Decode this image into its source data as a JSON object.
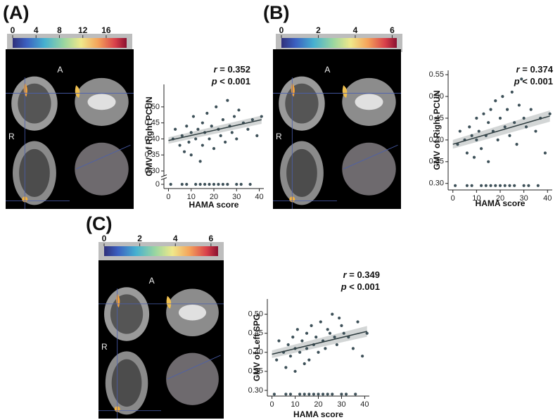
{
  "chart_data": [
    {
      "type": "scatter",
      "panel_label": "(A)",
      "stat_r": "r = 0.352",
      "stat_p": "p < 0.001",
      "brain_labels": {
        "anterior": "A",
        "right": "R"
      },
      "colorbar_ticks": [
        0,
        4,
        8,
        12,
        16
      ],
      "colorbar_lim": [
        0,
        19.5
      ],
      "xlabel": "HAMA score",
      "ylabel": "GMV of Right PCUN",
      "axis_break": true,
      "xlim": [
        -2,
        42
      ],
      "xticks": [
        0,
        10,
        20,
        30,
        40
      ],
      "ylim": [
        0,
        0.57
      ],
      "yticks": [
        {
          "value": 0,
          "label": "0"
        },
        {
          "value": 0.3,
          "label": "0.30"
        },
        {
          "value": 0.35,
          "label": "0.35"
        },
        {
          "value": 0.4,
          "label": "0.40"
        },
        {
          "value": 0.45,
          "label": "0.45"
        },
        {
          "value": 0.5,
          "label": "0.50"
        }
      ],
      "color": "#3d5058",
      "x": [
        2,
        3,
        5,
        6,
        7,
        8,
        9,
        10,
        10,
        11,
        12,
        13,
        14,
        15,
        15,
        16,
        17,
        18,
        19,
        20,
        21,
        22,
        23,
        24,
        25,
        26,
        27,
        28,
        29,
        30,
        31,
        33,
        35,
        37,
        39,
        41,
        1,
        6,
        12,
        18,
        24,
        30,
        36,
        8,
        14,
        20,
        26,
        32,
        16,
        22
      ],
      "y": [
        0.4,
        0.43,
        0.38,
        0.41,
        0.36,
        0.44,
        0.39,
        0.42,
        0.35,
        0.47,
        0.4,
        0.43,
        0.33,
        0.45,
        0.38,
        0.42,
        0.48,
        0.4,
        0.44,
        0.37,
        0.5,
        0.43,
        0.41,
        0.46,
        0.39,
        0.52,
        0.44,
        0.42,
        0.47,
        0.4,
        0.49,
        0.45,
        0.43,
        0.46,
        0.41,
        0.47,
        0,
        0,
        0,
        0,
        0,
        0,
        0,
        0,
        0,
        0,
        0,
        0,
        0,
        0
      ],
      "fit": {
        "x": [
          0,
          41
        ],
        "y": [
          0.395,
          0.46
        ],
        "lower": [
          0.385,
          0.447
        ],
        "upper": [
          0.405,
          0.473
        ]
      }
    },
    {
      "type": "scatter",
      "panel_label": "(B)",
      "stat_r": "r = 0.374",
      "stat_p": "p < 0.001",
      "brain_labels": {
        "anterior": "A",
        "right": "R"
      },
      "colorbar_ticks": [
        0,
        2,
        4,
        6
      ],
      "colorbar_lim": [
        0,
        6.25
      ],
      "xlabel": "HAMA score",
      "ylabel": "GMV of Right PCUN",
      "axis_break": false,
      "xlim": [
        -2,
        42
      ],
      "xticks": [
        0,
        10,
        20,
        30,
        40
      ],
      "ylim": [
        0.285,
        0.56
      ],
      "yticks": [
        {
          "value": 0.3,
          "label": "0.30"
        },
        {
          "value": 0.35,
          "label": "0.35"
        },
        {
          "value": 0.4,
          "label": "0.40"
        },
        {
          "value": 0.45,
          "label": "0.45"
        },
        {
          "value": 0.5,
          "label": "0.50"
        },
        {
          "value": 0.55,
          "label": "0.55"
        }
      ],
      "color": "#3d5058",
      "x": [
        2,
        3,
        5,
        6,
        7,
        8,
        9,
        10,
        10,
        11,
        12,
        13,
        14,
        15,
        15,
        16,
        17,
        18,
        19,
        20,
        21,
        22,
        23,
        24,
        25,
        26,
        27,
        28,
        29,
        30,
        31,
        33,
        35,
        37,
        39,
        41,
        1,
        6,
        12,
        18,
        24,
        30,
        36,
        8,
        14,
        20,
        26,
        32,
        16,
        22
      ],
      "y": [
        0.39,
        0.42,
        0.4,
        0.37,
        0.43,
        0.41,
        0.36,
        0.45,
        0.4,
        0.42,
        0.38,
        0.46,
        0.41,
        0.44,
        0.35,
        0.47,
        0.42,
        0.49,
        0.4,
        0.45,
        0.5,
        0.43,
        0.47,
        0.41,
        0.51,
        0.44,
        0.39,
        0.48,
        0.54,
        0.45,
        0.43,
        0.47,
        0.42,
        0.45,
        0.37,
        0.46,
        0.295,
        0.295,
        0.295,
        0.295,
        0.295,
        0.295,
        0.295,
        0.295,
        0.295,
        0.295,
        0.295,
        0.295,
        0.295,
        0.295
      ],
      "fit": {
        "x": [
          0,
          41
        ],
        "y": [
          0.39,
          0.455
        ],
        "lower": [
          0.38,
          0.442
        ],
        "upper": [
          0.4,
          0.468
        ]
      }
    },
    {
      "type": "scatter",
      "panel_label": "(C)",
      "stat_r": "r = 0.349",
      "stat_p": "p < 0.001",
      "brain_labels": {
        "anterior": "A",
        "right": "R"
      },
      "colorbar_ticks": [
        0,
        2,
        4,
        6
      ],
      "colorbar_lim": [
        0,
        6.4
      ],
      "xlabel": "HAMA score",
      "ylabel": "GMV of Left SPG",
      "axis_break": false,
      "xlim": [
        -2,
        42
      ],
      "xticks": [
        0,
        10,
        20,
        30,
        40
      ],
      "ylim": [
        0.285,
        0.54
      ],
      "yticks": [
        {
          "value": 0.3,
          "label": "0.30"
        },
        {
          "value": 0.35,
          "label": "0.35"
        },
        {
          "value": 0.4,
          "label": "0.40"
        },
        {
          "value": 0.45,
          "label": "0.45"
        },
        {
          "value": 0.5,
          "label": "0.50"
        }
      ],
      "color": "#3d5058",
      "x": [
        2,
        3,
        5,
        6,
        7,
        8,
        9,
        10,
        10,
        11,
        12,
        13,
        14,
        15,
        15,
        16,
        17,
        18,
        19,
        20,
        21,
        22,
        23,
        24,
        25,
        26,
        27,
        28,
        29,
        30,
        31,
        33,
        35,
        37,
        39,
        41,
        1,
        6,
        12,
        18,
        24,
        30,
        36,
        8,
        14,
        20,
        26,
        32,
        16,
        22
      ],
      "y": [
        0.38,
        0.43,
        0.4,
        0.36,
        0.42,
        0.39,
        0.44,
        0.41,
        0.35,
        0.46,
        0.4,
        0.43,
        0.37,
        0.45,
        0.41,
        0.38,
        0.47,
        0.42,
        0.44,
        0.4,
        0.48,
        0.43,
        0.41,
        0.46,
        0.45,
        0.5,
        0.44,
        0.42,
        0.49,
        0.47,
        0.45,
        0.44,
        0.41,
        0.48,
        0.39,
        0.45,
        0.29,
        0.29,
        0.29,
        0.29,
        0.29,
        0.29,
        0.29,
        0.29,
        0.29,
        0.29,
        0.29,
        0.29,
        0.29,
        0.29
      ],
      "fit": {
        "x": [
          0,
          41
        ],
        "y": [
          0.395,
          0.455
        ],
        "lower": [
          0.385,
          0.441
        ],
        "upper": [
          0.405,
          0.469
        ]
      }
    }
  ]
}
